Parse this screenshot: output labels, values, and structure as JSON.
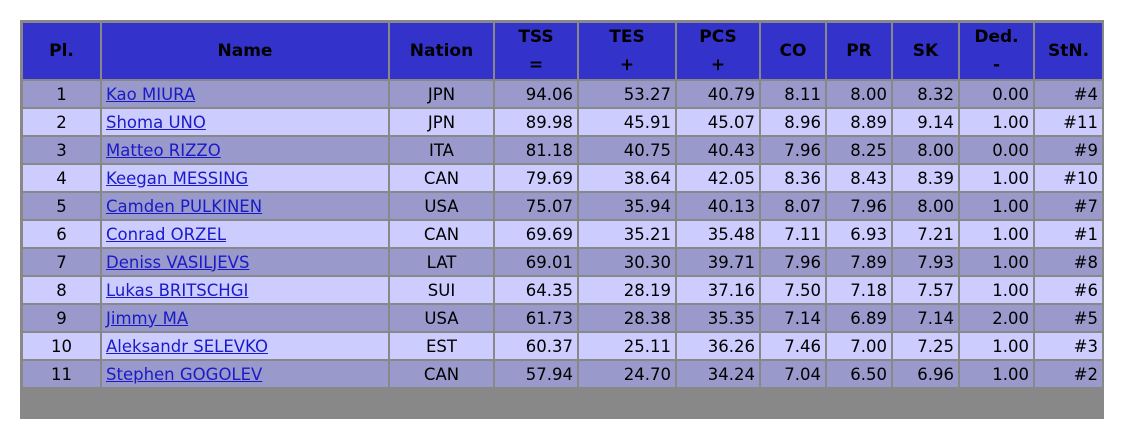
{
  "headers": {
    "pl": "Pl.",
    "name": "Name",
    "nation": "Nation",
    "tss": "TSS",
    "tss_sym": "=",
    "tes": "TES",
    "tes_sym": "+",
    "pcs": "PCS",
    "pcs_sym": "+",
    "co": "CO",
    "pr": "PR",
    "sk": "SK",
    "ded": "Ded.",
    "ded_sym": "-",
    "stn": "StN."
  },
  "rows": [
    {
      "pl": "1",
      "name": "Kao MIURA",
      "nation": "JPN",
      "tss": "94.06",
      "tes": "53.27",
      "pcs": "40.79",
      "co": "8.11",
      "pr": "8.00",
      "sk": "8.32",
      "ded": "0.00",
      "stn": "#4"
    },
    {
      "pl": "2",
      "name": "Shoma UNO",
      "nation": "JPN",
      "tss": "89.98",
      "tes": "45.91",
      "pcs": "45.07",
      "co": "8.96",
      "pr": "8.89",
      "sk": "9.14",
      "ded": "1.00",
      "stn": "#11"
    },
    {
      "pl": "3",
      "name": "Matteo RIZZO",
      "nation": "ITA",
      "tss": "81.18",
      "tes": "40.75",
      "pcs": "40.43",
      "co": "7.96",
      "pr": "8.25",
      "sk": "8.00",
      "ded": "0.00",
      "stn": "#9"
    },
    {
      "pl": "4",
      "name": "Keegan MESSING",
      "nation": "CAN",
      "tss": "79.69",
      "tes": "38.64",
      "pcs": "42.05",
      "co": "8.36",
      "pr": "8.43",
      "sk": "8.39",
      "ded": "1.00",
      "stn": "#10"
    },
    {
      "pl": "5",
      "name": "Camden PULKINEN",
      "nation": "USA",
      "tss": "75.07",
      "tes": "35.94",
      "pcs": "40.13",
      "co": "8.07",
      "pr": "7.96",
      "sk": "8.00",
      "ded": "1.00",
      "stn": "#7"
    },
    {
      "pl": "6",
      "name": "Conrad ORZEL",
      "nation": "CAN",
      "tss": "69.69",
      "tes": "35.21",
      "pcs": "35.48",
      "co": "7.11",
      "pr": "6.93",
      "sk": "7.21",
      "ded": "1.00",
      "stn": "#1"
    },
    {
      "pl": "7",
      "name": "Deniss VASILJEVS",
      "nation": "LAT",
      "tss": "69.01",
      "tes": "30.30",
      "pcs": "39.71",
      "co": "7.96",
      "pr": "7.89",
      "sk": "7.93",
      "ded": "1.00",
      "stn": "#8"
    },
    {
      "pl": "8",
      "name": "Lukas BRITSCHGI",
      "nation": "SUI",
      "tss": "64.35",
      "tes": "28.19",
      "pcs": "37.16",
      "co": "7.50",
      "pr": "7.18",
      "sk": "7.57",
      "ded": "1.00",
      "stn": "#6"
    },
    {
      "pl": "9",
      "name": "Jimmy MA",
      "nation": "USA",
      "tss": "61.73",
      "tes": "28.38",
      "pcs": "35.35",
      "co": "7.14",
      "pr": "6.89",
      "sk": "7.14",
      "ded": "2.00",
      "stn": "#5"
    },
    {
      "pl": "10",
      "name": "Aleksandr SELEVKO",
      "nation": "EST",
      "tss": "60.37",
      "tes": "25.11",
      "pcs": "36.26",
      "co": "7.46",
      "pr": "7.00",
      "sk": "7.25",
      "ded": "1.00",
      "stn": "#3"
    },
    {
      "pl": "11",
      "name": "Stephen GOGOLEV",
      "nation": "CAN",
      "tss": "57.94",
      "tes": "24.70",
      "pcs": "34.24",
      "co": "7.04",
      "pr": "6.50",
      "sk": "6.96",
      "ded": "1.00",
      "stn": "#2"
    }
  ],
  "colors": {
    "header_bg": "#3333cc",
    "row_odd_bg": "#9999cc",
    "row_even_bg": "#ccccff",
    "link": "#1a1ac8",
    "border": "#888888"
  }
}
